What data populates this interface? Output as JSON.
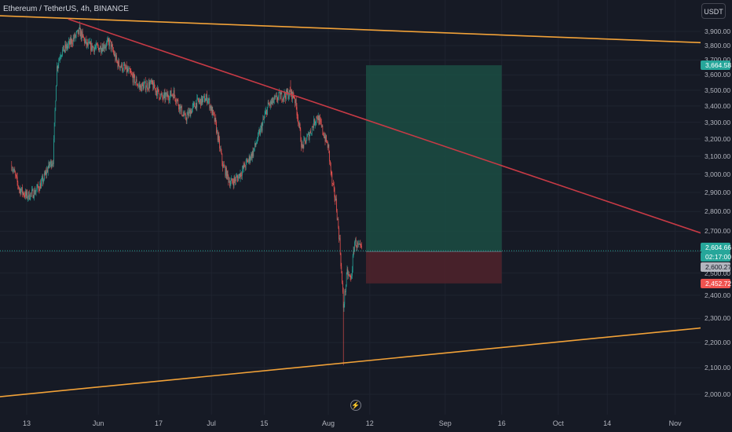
{
  "header": {
    "symbol": "Ethereum / TetherUS",
    "separator": ", ",
    "interval": "4h",
    "exchange": "BINANCE",
    "currency_button": "USDT"
  },
  "price_labels": {
    "current": "2,604.66",
    "countdown": "02:17:00",
    "entry": "2,600.27",
    "stop": "2,452.72",
    "target": "3,664.58"
  },
  "colors": {
    "background": "#161a25",
    "bull": "#26a69a",
    "bear": "#ef5350",
    "trendline_orange": "#f2a238",
    "trendline_red": "#c73a45",
    "profit_zone": "#1b4d43",
    "loss_zone": "#4d222b",
    "grid": "#1f2430"
  },
  "icons": {
    "replay": "lightning-icon"
  },
  "chart_data": {
    "type": "candlestick",
    "title": "Ethereum / TetherUS, 4h, BINANCE",
    "y_axis": {
      "scale": "log",
      "ticks": [
        "2,000.00",
        "2,100.00",
        "2,200.00",
        "2,300.00",
        "2,400.00",
        "2,500.00",
        "2,600.00",
        "2,700.00",
        "2,800.00",
        "2,900.00",
        "3,000.00",
        "3,100.00",
        "3,200.00",
        "3,300.00",
        "3,400.00",
        "3,500.00",
        "3,600.00",
        "3,700.00",
        "3,800.00",
        "3,900.00"
      ],
      "tick_values": [
        2000,
        2100,
        2200,
        2300,
        2400,
        2500,
        2600,
        2700,
        2800,
        2900,
        3000,
        3100,
        3200,
        3300,
        3400,
        3500,
        3600,
        3700,
        3800,
        3900
      ]
    },
    "x_axis": {
      "ticks": [
        "13",
        "Jun",
        "17",
        "Jul",
        "15",
        "Aug",
        "12",
        "Sep",
        "16",
        "Oct",
        "14",
        "Nov"
      ],
      "tick_dates": [
        "2024-05-13",
        "2024-06-01",
        "2024-06-17",
        "2024-07-01",
        "2024-07-15",
        "2024-08-01",
        "2024-08-12",
        "2024-09-01",
        "2024-09-16",
        "2024-10-01",
        "2024-10-14",
        "2024-11-01"
      ]
    },
    "price_path": [
      {
        "date": "2024-05-09",
        "price": 3050
      },
      {
        "date": "2024-05-11",
        "price": 2920
      },
      {
        "date": "2024-05-13",
        "price": 2880
      },
      {
        "date": "2024-05-15",
        "price": 2900
      },
      {
        "date": "2024-05-17",
        "price": 2950
      },
      {
        "date": "2024-05-19",
        "price": 3050
      },
      {
        "date": "2024-05-20",
        "price": 3080
      },
      {
        "date": "2024-05-21",
        "price": 3650
      },
      {
        "date": "2024-05-22",
        "price": 3750
      },
      {
        "date": "2024-05-24",
        "price": 3800
      },
      {
        "date": "2024-05-27",
        "price": 3900
      },
      {
        "date": "2024-05-29",
        "price": 3800
      },
      {
        "date": "2024-06-01",
        "price": 3780
      },
      {
        "date": "2024-06-04",
        "price": 3820
      },
      {
        "date": "2024-06-06",
        "price": 3680
      },
      {
        "date": "2024-06-09",
        "price": 3620
      },
      {
        "date": "2024-06-12",
        "price": 3520
      },
      {
        "date": "2024-06-15",
        "price": 3540
      },
      {
        "date": "2024-06-18",
        "price": 3450
      },
      {
        "date": "2024-06-21",
        "price": 3480
      },
      {
        "date": "2024-06-24",
        "price": 3320
      },
      {
        "date": "2024-06-27",
        "price": 3420
      },
      {
        "date": "2024-06-30",
        "price": 3450
      },
      {
        "date": "2024-07-02",
        "price": 3300
      },
      {
        "date": "2024-07-04",
        "price": 3050
      },
      {
        "date": "2024-07-06",
        "price": 2950
      },
      {
        "date": "2024-07-08",
        "price": 2980
      },
      {
        "date": "2024-07-10",
        "price": 3050
      },
      {
        "date": "2024-07-12",
        "price": 3120
      },
      {
        "date": "2024-07-14",
        "price": 3250
      },
      {
        "date": "2024-07-16",
        "price": 3400
      },
      {
        "date": "2024-07-19",
        "price": 3460
      },
      {
        "date": "2024-07-22",
        "price": 3480
      },
      {
        "date": "2024-07-23",
        "price": 3460
      },
      {
        "date": "2024-07-24",
        "price": 3320
      },
      {
        "date": "2024-07-25",
        "price": 3150
      },
      {
        "date": "2024-07-27",
        "price": 3230
      },
      {
        "date": "2024-07-29",
        "price": 3340
      },
      {
        "date": "2024-07-30",
        "price": 3280
      },
      {
        "date": "2024-08-01",
        "price": 3150
      },
      {
        "date": "2024-08-02",
        "price": 2950
      },
      {
        "date": "2024-08-03",
        "price": 2850
      },
      {
        "date": "2024-08-04",
        "price": 2650
      },
      {
        "date": "2024-08-05",
        "price": 2350
      },
      {
        "date": "2024-08-06",
        "price": 2500
      },
      {
        "date": "2024-08-07",
        "price": 2470
      },
      {
        "date": "2024-08-08",
        "price": 2650
      },
      {
        "date": "2024-08-09",
        "price": 2620
      },
      {
        "date": "2024-08-10",
        "price": 2610
      }
    ],
    "extremes": {
      "high": {
        "date": "2024-05-27",
        "price": 3975
      },
      "jul_high": {
        "date": "2024-07-22",
        "price": 3565
      },
      "low": {
        "date": "2024-08-05",
        "price": 2110
      }
    },
    "trendlines": [
      {
        "name": "upper",
        "color": "orange",
        "from": {
          "date": "2024-05-05",
          "price": 4015
        },
        "to": {
          "date": "2024-11-08",
          "price": 3820
        }
      },
      {
        "name": "lower",
        "color": "orange",
        "from": {
          "date": "2024-05-05",
          "price": 1990
        },
        "to": {
          "date": "2024-11-08",
          "price": 2260
        }
      },
      {
        "name": "descending",
        "color": "red",
        "from": {
          "date": "2024-05-24",
          "price": 3990
        },
        "to": {
          "date": "2024-11-08",
          "price": 2690
        }
      }
    ],
    "position": {
      "type": "long",
      "from_date": "2024-08-11",
      "to_date": "2024-09-16",
      "entry": 2600.27,
      "stop": 2452.72,
      "target": 3664.58
    },
    "current_price": 2604.66
  }
}
